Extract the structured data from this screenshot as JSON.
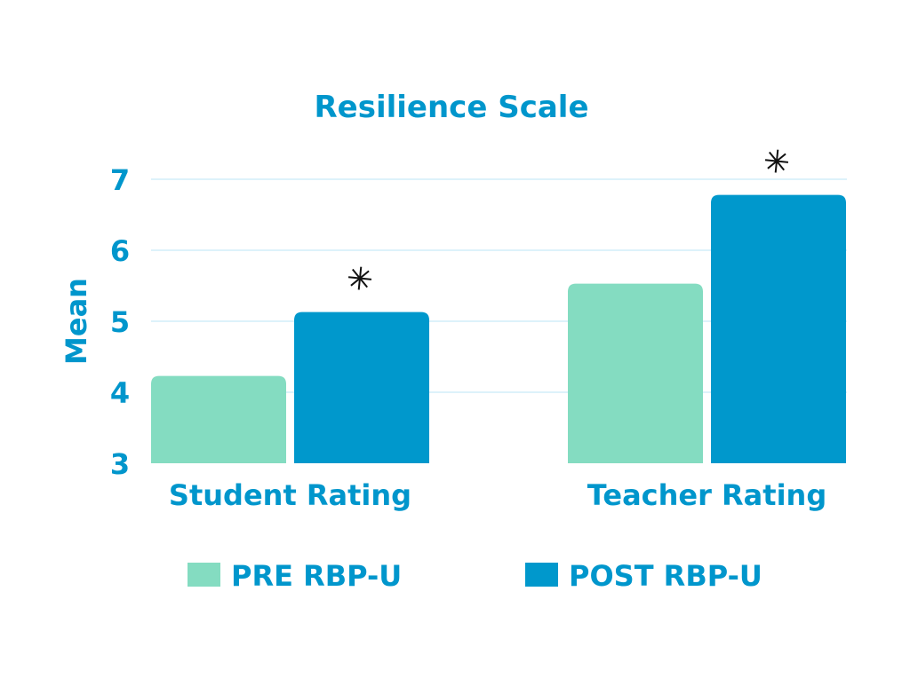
{
  "chart_data": {
    "type": "bar",
    "title": "Resilience Scale",
    "xlabel": "",
    "ylabel": "Mean",
    "ylim": [
      3,
      7
    ],
    "yticks": [
      "3",
      "4",
      "5",
      "6",
      "7"
    ],
    "categories": [
      "Student Rating",
      "Teacher Rating"
    ],
    "series": [
      {
        "name": "PRE RBP-U",
        "values": [
          4.23,
          5.53
        ],
        "color": "#84dcc1"
      },
      {
        "name": "POST RBP-U",
        "values": [
          5.13,
          6.78
        ],
        "color": "#0098cc"
      }
    ],
    "annotations": [
      {
        "text": "*",
        "category": "Student Rating",
        "series": "POST RBP-U"
      },
      {
        "text": "*",
        "category": "Teacher Rating",
        "series": "POST RBP-U"
      }
    ],
    "grid": true,
    "legend_position": "bottom"
  }
}
